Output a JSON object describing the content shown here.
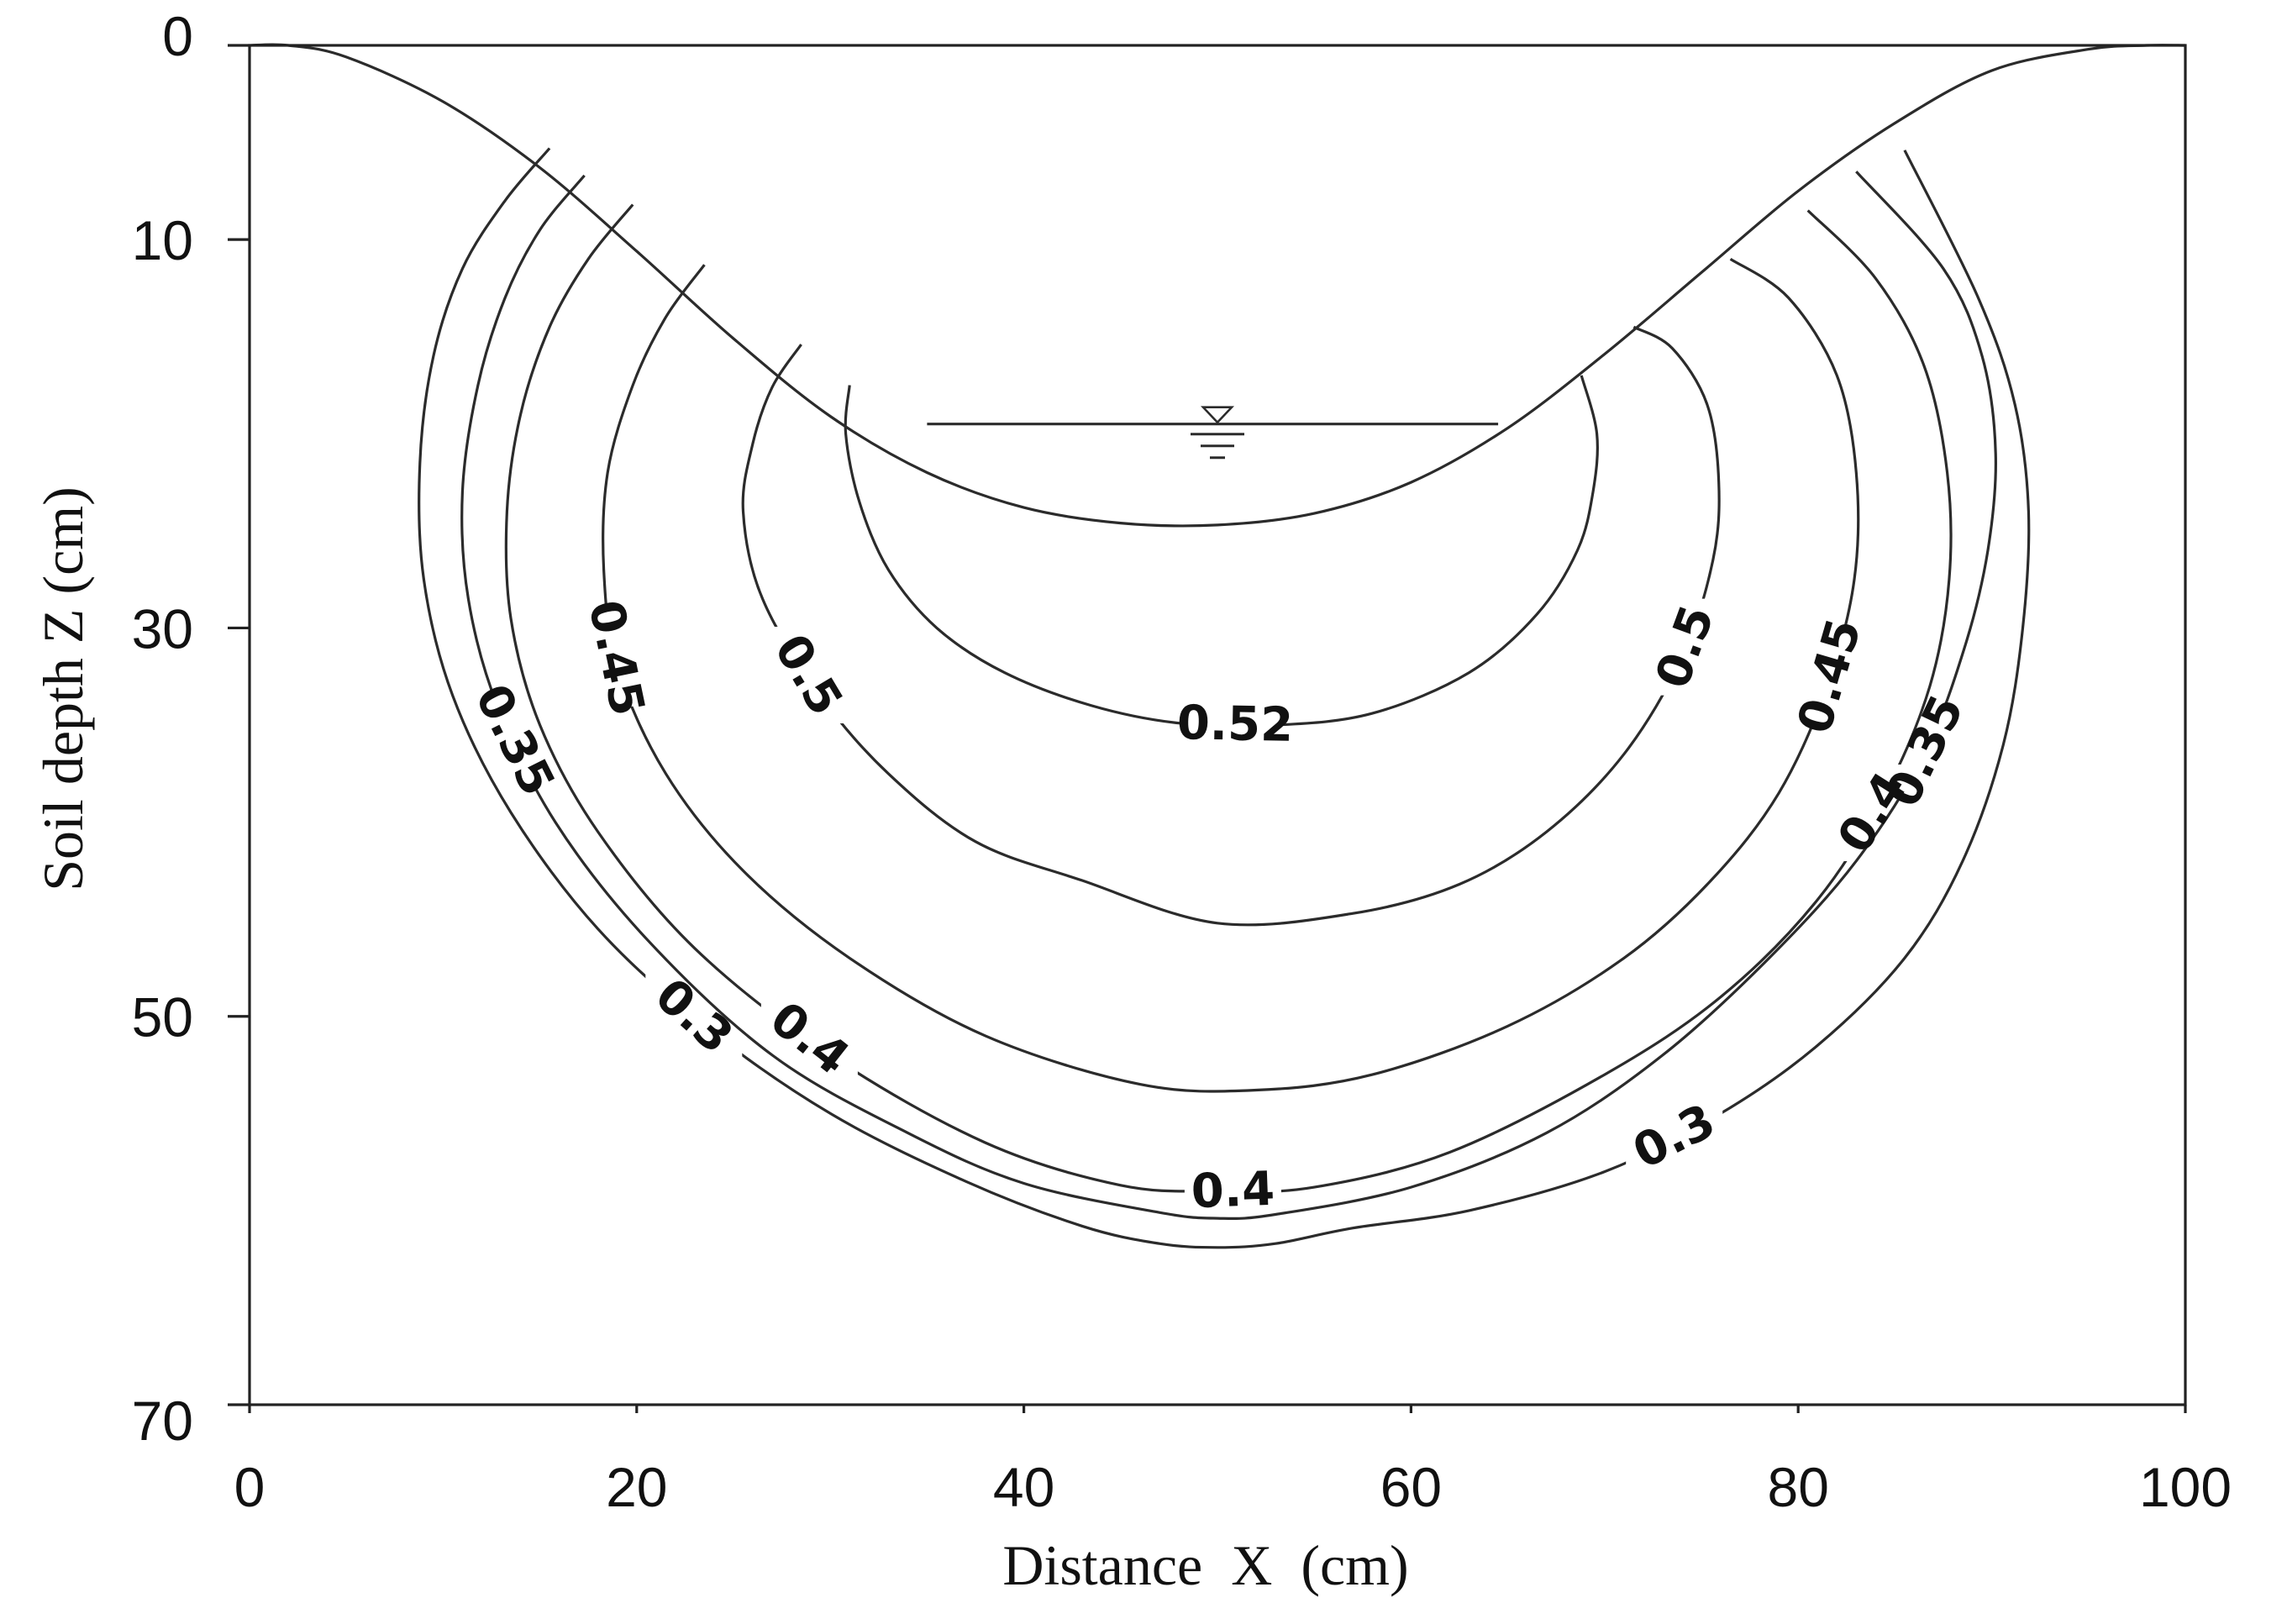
{
  "chart_data": {
    "type": "contour",
    "xlabel": "Distance  X  (cm)",
    "ylabel": "Soil depth Z (cm)",
    "xlim": [
      0,
      100
    ],
    "ylim": [
      0,
      70
    ],
    "y_inverted": true,
    "x_ticks": [
      "0",
      "20",
      "40",
      "60",
      "80",
      "100"
    ],
    "y_ticks": [
      "0",
      "10",
      "30",
      "50",
      "70"
    ],
    "y_tick_values": [
      0,
      10,
      30,
      50,
      70
    ],
    "x_tick_values": [
      0,
      20,
      40,
      60,
      80,
      100
    ],
    "furrow_surface": {
      "x": [
        0,
        2,
        5,
        10,
        15,
        20,
        25,
        30,
        35,
        40,
        45,
        50,
        55,
        60,
        65,
        70,
        75,
        80,
        85,
        90,
        95,
        98,
        100
      ],
      "z": [
        0,
        0,
        0.6,
        2.9,
        6.3,
        10.6,
        15.1,
        19.1,
        22.0,
        23.8,
        24.6,
        24.7,
        24.1,
        22.5,
        19.7,
        15.9,
        11.7,
        7.5,
        4.0,
        1.3,
        0.2,
        0,
        0
      ]
    },
    "water_surface": {
      "x": [
        35,
        64.5
      ],
      "z": 19.5
    },
    "water_symbol_x": 50,
    "contours": [
      {
        "level": 0.52,
        "labels": [
          "0.52"
        ],
        "x": [
          31,
          30.8,
          31.5,
          33,
          35.5,
          39,
          43.5,
          48,
          53,
          58,
          63,
          66.5,
          68.6,
          69.4,
          69.6,
          68.8
        ],
        "z": [
          17.5,
          20,
          23.5,
          27,
          30,
          32.3,
          34,
          34.9,
          35,
          34.4,
          32.3,
          29.3,
          26,
          23,
          20,
          17
        ]
      },
      {
        "level": 0.5,
        "labels": [
          "0.5",
          "0.5"
        ],
        "x": [
          28.5,
          27,
          26,
          25.5,
          26.5,
          29.5,
          33,
          37.5,
          43,
          50,
          57,
          62.5,
          67,
          71,
          74,
          75.6,
          75.9,
          75.3,
          73.5,
          71.5
        ],
        "z": [
          15.4,
          17.6,
          20.5,
          24,
          28.5,
          33.5,
          37.5,
          41,
          43,
          45.2,
          44.7,
          43.2,
          40.5,
          36.5,
          31.5,
          26.5,
          22.5,
          18.5,
          15.6,
          14.5
        ]
      },
      {
        "level": 0.45,
        "labels": [
          "0.45",
          "0.45"
        ],
        "x": [
          23.5,
          21.5,
          19.8,
          18.5,
          18.3,
          19,
          21.5,
          25.5,
          31,
          38,
          46,
          52,
          58,
          65,
          71,
          75.5,
          79,
          81.5,
          82.9,
          83,
          82,
          79.5,
          76.5
        ],
        "z": [
          11.3,
          14,
          17.5,
          22,
          27,
          32,
          37.5,
          42.5,
          47,
          51,
          53.5,
          53.8,
          53,
          50.5,
          47,
          43,
          38.5,
          33,
          27.5,
          22,
          17,
          13,
          11
        ]
      },
      {
        "level": 0.4,
        "labels": [
          "0.4",
          "0.4",
          "0.4"
        ],
        "x": [
          19.8,
          17.5,
          15.5,
          14,
          13.3,
          13.5,
          15,
          18,
          23,
          30,
          38,
          45,
          50,
          55,
          62,
          70,
          76,
          81,
          84.5,
          86.8,
          87.8,
          87.7,
          86.5,
          84,
          80.5
        ],
        "z": [
          8.2,
          11,
          14.5,
          19,
          24,
          29.5,
          35,
          40.5,
          46.5,
          52,
          56.5,
          58.7,
          59,
          58.8,
          57,
          53,
          49,
          44,
          38.5,
          33,
          27.5,
          22,
          16.5,
          12,
          8.5
        ]
      },
      {
        "level": 0.35,
        "labels": [
          "0.35",
          "0.35"
        ],
        "x": [
          17.3,
          15,
          13.2,
          11.8,
          11,
          11.3,
          12.8,
          15.8,
          20.5,
          27,
          34,
          40,
          47,
          50,
          53,
          60,
          67,
          73,
          78.5,
          83,
          86.5,
          88.6,
          89.8,
          90.2,
          89.5,
          87.5,
          83
        ],
        "z": [
          6.7,
          9.5,
          13,
          17.5,
          23,
          28.5,
          34,
          40,
          46,
          52,
          56,
          58.6,
          60.1,
          60.4,
          60.2,
          58.8,
          56,
          52,
          47,
          42,
          36.5,
          31,
          26,
          21,
          16,
          11.5,
          6.5
        ]
      },
      {
        "level": 0.3,
        "labels": [
          "0.3",
          "0.3"
        ],
        "x": [
          15.5,
          13.2,
          11,
          9.5,
          8.8,
          9,
          10.5,
          13.5,
          18,
          23.5,
          30,
          37,
          43,
          47,
          50,
          53,
          57,
          63,
          70,
          76,
          81,
          85.5,
          88.5,
          90.6,
          91.6,
          91.9,
          91.2,
          89.3,
          85.5
        ],
        "z": [
          5.3,
          8,
          11.5,
          16,
          21.5,
          27.5,
          33.5,
          39.5,
          45.5,
          50.5,
          55,
          58.5,
          60.8,
          61.7,
          61.9,
          61.7,
          60.9,
          60,
          58,
          55,
          51.5,
          47,
          42,
          36,
          30,
          24,
          18.5,
          13,
          5.4
        ]
      }
    ]
  }
}
